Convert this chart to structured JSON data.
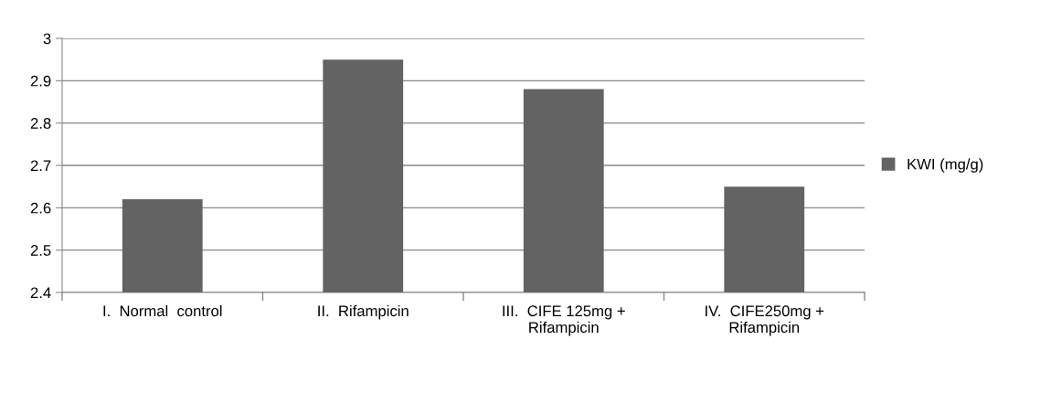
{
  "chart_data": {
    "type": "bar",
    "categories": [
      "I.  Normal  control",
      "II.  Rifampicin",
      "III.  CIFE 125mg +\nRifampicin",
      "IV.  CIFE250mg +\nRifampicin"
    ],
    "series": [
      {
        "name": "KWI (mg/g)",
        "color": "#636363",
        "values": [
          2.62,
          2.95,
          2.88,
          2.65
        ]
      }
    ],
    "ylim": [
      2.4,
      3.0
    ],
    "yticks": [
      2.4,
      2.5,
      2.6,
      2.7,
      2.8,
      2.9,
      3
    ],
    "grid": "y",
    "legend": "right"
  }
}
